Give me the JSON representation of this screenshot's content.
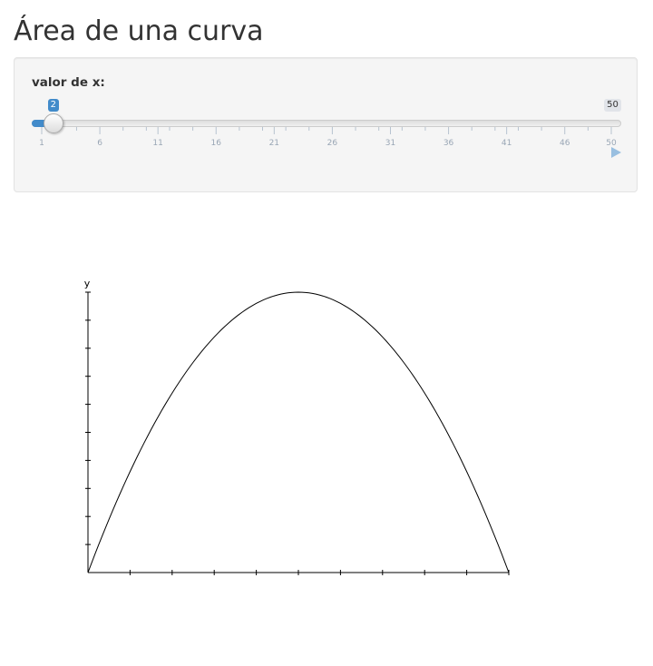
{
  "page": {
    "title": "Área de una curva"
  },
  "slider": {
    "label": "valor de x:",
    "min": 1,
    "max": 50,
    "value": 2,
    "value_label": "2",
    "max_label": "50",
    "ticks": [
      "1",
      "6",
      "11",
      "16",
      "21",
      "26",
      "31",
      "36",
      "41",
      "46",
      "50"
    ],
    "accent_color": "#428bca",
    "animate_icon": "play-icon"
  },
  "chart_data": {
    "type": "line",
    "ylabel": "y",
    "xlabel": "",
    "x_ticks": 10,
    "y_ticks": 10,
    "shape": "parabola",
    "series": [
      {
        "x": [
          0,
          0.1,
          0.2,
          0.3,
          0.4,
          0.5,
          0.6,
          0.7,
          0.8,
          0.9,
          1.0
        ],
        "values": [
          0,
          0.36,
          0.64,
          0.84,
          0.96,
          1.0,
          0.96,
          0.84,
          0.64,
          0.36,
          0
        ]
      }
    ]
  }
}
